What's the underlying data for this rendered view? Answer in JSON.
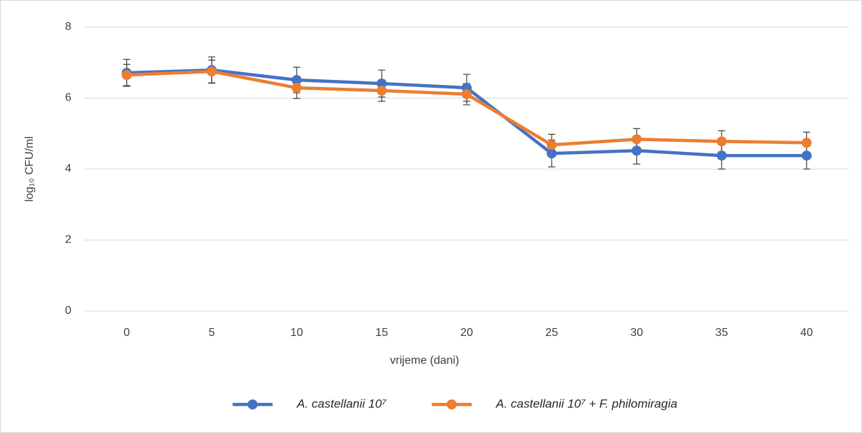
{
  "chart_data": {
    "type": "line",
    "x": [
      0,
      5,
      10,
      15,
      20,
      25,
      30,
      35,
      40
    ],
    "xlim": [
      -2.5,
      42.5
    ],
    "xticks": [
      0,
      5,
      10,
      15,
      20,
      25,
      30,
      35,
      40
    ],
    "ylim": [
      0,
      8
    ],
    "yticks": [
      0,
      2,
      4,
      6,
      8
    ],
    "grid": true,
    "xlabel": "vrijeme (dani)",
    "ylabel": "log₁₀ CFU/ml",
    "legend": "bottom",
    "series": [
      {
        "name": "A. castellanii 10⁷",
        "color": "#4472c4",
        "values": [
          6.71,
          6.79,
          6.51,
          6.41,
          6.29,
          4.44,
          4.52,
          4.38,
          4.38
        ],
        "errors": [
          0.38,
          0.37,
          0.36,
          0.38,
          0.38,
          0.38,
          0.38,
          0.38,
          0.38
        ]
      },
      {
        "name": "A. castellanii 10⁷ + F. philomiragia",
        "color": "#ed7d31",
        "values": [
          6.65,
          6.75,
          6.29,
          6.21,
          6.11,
          4.68,
          4.84,
          4.78,
          4.74
        ],
        "errors": [
          0.3,
          0.32,
          0.3,
          0.3,
          0.3,
          0.3,
          0.3,
          0.3,
          0.3
        ]
      }
    ]
  }
}
